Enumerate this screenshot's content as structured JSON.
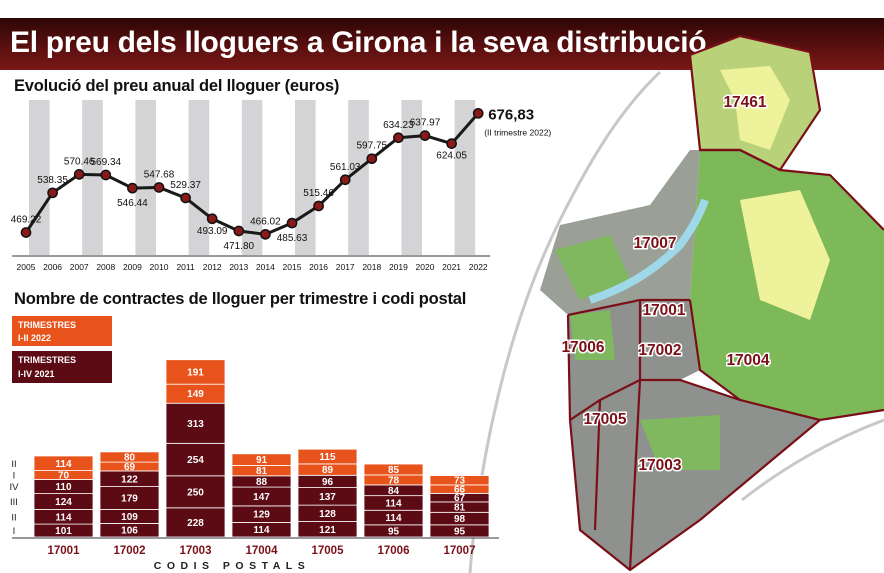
{
  "banner": {
    "title": "El preu dels lloguers a Girona i la seva distribució"
  },
  "colors": {
    "orange": "#e8531c",
    "maroon": "#5c0a14",
    "line": "#1a1a1a",
    "stripe": "#d4d4d6",
    "dot": "#8a1a1a"
  },
  "line_chart": {
    "title": "Evolució del preu anual del lloguer (euros)",
    "last_note": "(II trimestre 2022)"
  },
  "bar_chart": {
    "title": "Nombre de contractes de lloguer per trimestre i codi postal",
    "legend_orange": [
      "TRIMESTRES",
      "I-II 2022"
    ],
    "legend_maroon": [
      "TRIMESTRES",
      "I-IV 2021"
    ],
    "quarter_labels": [
      "II",
      "I",
      "IV",
      "III",
      "II",
      "I"
    ],
    "xlabel": "CODIS POSTALS"
  },
  "map": {
    "labels": [
      "17461",
      "17007",
      "17001",
      "17006",
      "17002",
      "17004",
      "17005",
      "17003"
    ]
  },
  "chart_data": [
    {
      "type": "line",
      "title": "Evolució del preu anual del lloguer (euros)",
      "x": [
        "2005",
        "2006",
        "2007",
        "2008",
        "2009",
        "2010",
        "2011",
        "2012",
        "2013",
        "2014",
        "2015",
        "2016",
        "2017",
        "2018",
        "2019",
        "2020",
        "2021",
        "2022"
      ],
      "value_labels": [
        "469.22",
        "538.35",
        "570.46",
        "569.34",
        "546.44",
        "547.68",
        "529.37",
        "493.09",
        "471.80",
        "466.02",
        "485.63",
        "515.46",
        "561.03",
        "597.75",
        "634.23",
        "637.97",
        "624.05",
        "676,83"
      ],
      "series": [
        {
          "values": [
            469.22,
            538.35,
            570.46,
            569.34,
            546.44,
            547.68,
            529.37,
            493.09,
            471.8,
            466.02,
            485.63,
            515.46,
            561.03,
            597.75,
            634.23,
            637.97,
            624.05,
            676.83
          ]
        }
      ],
      "ylim": [
        430,
        700
      ],
      "grid": false
    },
    {
      "type": "bar",
      "title": "Nombre de contractes de lloguer per trimestre i codi postal",
      "xlabel": "CODIS POSTALS",
      "categories": [
        "17001",
        "17002",
        "17003",
        "17004",
        "17005",
        "17006",
        "17007"
      ],
      "series": [
        {
          "name": "I 2021",
          "values": [
            101,
            106,
            228,
            114,
            121,
            95,
            95
          ]
        },
        {
          "name": "II 2021",
          "values": [
            114,
            109,
            250,
            129,
            128,
            114,
            98
          ]
        },
        {
          "name": "III 2021",
          "values": [
            124,
            179,
            254,
            147,
            137,
            114,
            81
          ]
        },
        {
          "name": "IV 2021",
          "values": [
            110,
            122,
            313,
            88,
            96,
            84,
            67
          ]
        },
        {
          "name": "I 2022",
          "values": [
            70,
            69,
            149,
            81,
            89,
            78,
            66
          ]
        },
        {
          "name": "II 2022",
          "values": [
            114,
            80,
            191,
            91,
            115,
            85,
            73
          ]
        }
      ]
    }
  ]
}
